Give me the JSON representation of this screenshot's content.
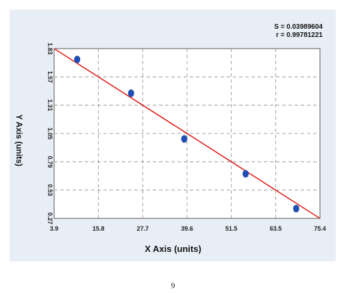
{
  "chart_data": {
    "type": "scatter",
    "title": "",
    "xlabel": "X Axis (units)",
    "ylabel": "Y Axis (units)",
    "xlim": [
      3.9,
      75.4
    ],
    "ylim": [
      0.27,
      1.83
    ],
    "x_ticks": [
      "3.9",
      "15.8",
      "27.7",
      "39.6",
      "51.5",
      "63.5",
      "75.4"
    ],
    "y_ticks": [
      "0.27",
      "0.53",
      "0.79",
      "1.05",
      "1.31",
      "1.57",
      "1.83"
    ],
    "grid": true,
    "stats": {
      "s": "S = 0.03989604",
      "r": "r = 0.99781221"
    },
    "points": [
      {
        "x": 10.1,
        "y": 1.73
      },
      {
        "x": 24.6,
        "y": 1.42
      },
      {
        "x": 38.9,
        "y": 1.0
      },
      {
        "x": 55.4,
        "y": 0.68
      },
      {
        "x": 69.0,
        "y": 0.36
      }
    ],
    "fit_line": {
      "x": [
        3.9,
        75.4
      ],
      "y": [
        1.83,
        0.27
      ]
    },
    "colors": {
      "points": "#1f4fb4",
      "line": "#e0201a",
      "grid": "#8a8a8a",
      "panel": "#e8eef5"
    }
  },
  "footer": {
    "page_number": "9"
  }
}
